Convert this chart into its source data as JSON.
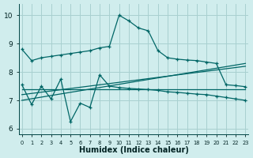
{
  "xlabel": "Humidex (Indice chaleur)",
  "bg_color": "#d0eded",
  "grid_color": "#a8d0d0",
  "line_color": "#006666",
  "ylim": [
    5.8,
    10.4
  ],
  "xlim": [
    -0.3,
    23.3
  ],
  "series1_y": [
    8.8,
    8.4,
    8.5,
    8.55,
    8.6,
    8.65,
    8.7,
    8.75,
    8.85,
    8.9,
    10.0,
    9.8,
    9.55,
    9.45,
    8.75,
    8.5,
    8.45,
    8.42,
    8.4,
    8.35,
    8.3,
    7.55,
    7.52,
    7.48
  ],
  "series2_y": [
    7.55,
    6.85,
    7.5,
    7.05,
    7.75,
    6.25,
    6.9,
    6.75,
    7.9,
    7.5,
    7.45,
    7.42,
    7.4,
    7.38,
    7.35,
    7.3,
    7.28,
    7.25,
    7.22,
    7.2,
    7.15,
    7.1,
    7.05,
    7.0
  ],
  "trend1": [
    7.0,
    8.3
  ],
  "trend2": [
    7.2,
    8.2
  ],
  "trend3": [
    7.4,
    7.4
  ]
}
